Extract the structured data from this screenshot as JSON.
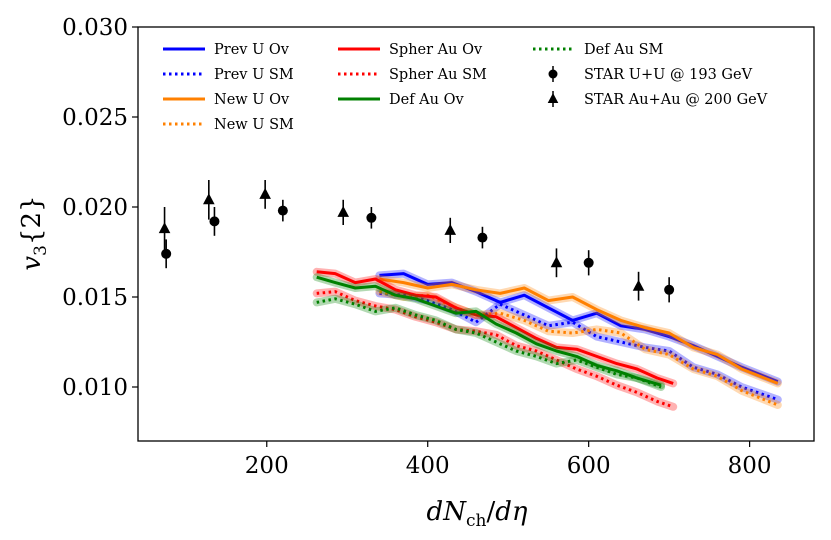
{
  "chart_data": {
    "type": "line",
    "title": "",
    "xlabel": "dN_ch/dη",
    "ylabel": "v3{2}",
    "xlabel_parts": {
      "d1": "d",
      "N": "N",
      "sub": "ch",
      "slash": "/",
      "d2": "d",
      "eta": "η"
    },
    "ylabel_parts": {
      "v": "v",
      "sub": "3",
      "brace": "{2}"
    },
    "xlim": [
      40,
      880
    ],
    "ylim": [
      0.007,
      0.03
    ],
    "xticks": [
      200,
      400,
      600,
      800
    ],
    "xtick_labels": [
      "200",
      "400",
      "600",
      "800"
    ],
    "yticks": [
      0.01,
      0.015,
      0.02,
      0.025,
      0.03
    ],
    "ytick_labels": [
      "0.010",
      "0.015",
      "0.020",
      "0.025",
      "0.030"
    ],
    "grid": false,
    "legend_position": "top",
    "series": [
      {
        "name": "Prev U Ov",
        "style": "solid",
        "color": "#0000ff",
        "x": [
          340,
          370,
          400,
          430,
          460,
          490,
          520,
          550,
          580,
          610,
          640,
          670,
          700,
          730,
          760,
          790,
          835
        ],
        "y": [
          0.0162,
          0.0163,
          0.0157,
          0.0158,
          0.0153,
          0.0147,
          0.0151,
          0.0144,
          0.0137,
          0.0141,
          0.0134,
          0.0132,
          0.0128,
          0.0123,
          0.0117,
          0.0111,
          0.0103
        ]
      },
      {
        "name": "Prev U SM",
        "style": "dotted",
        "color": "#0000ff",
        "x": [
          340,
          370,
          400,
          430,
          460,
          490,
          520,
          550,
          580,
          610,
          640,
          670,
          700,
          730,
          760,
          790,
          835
        ],
        "y": [
          0.0152,
          0.0151,
          0.0148,
          0.0143,
          0.0136,
          0.0146,
          0.014,
          0.0134,
          0.0136,
          0.0128,
          0.0125,
          0.0122,
          0.012,
          0.0111,
          0.0107,
          0.01,
          0.0093
        ]
      },
      {
        "name": "New U Ov",
        "style": "solid",
        "color": "#ff8000",
        "x": [
          340,
          370,
          400,
          430,
          460,
          490,
          520,
          550,
          580,
          610,
          640,
          670,
          700,
          730,
          760,
          790,
          835
        ],
        "y": [
          0.016,
          0.0158,
          0.0155,
          0.0157,
          0.0154,
          0.0152,
          0.0155,
          0.0148,
          0.015,
          0.0143,
          0.0137,
          0.0133,
          0.013,
          0.0122,
          0.0118,
          0.011,
          0.0102
        ]
      },
      {
        "name": "New U SM",
        "style": "dotted",
        "color": "#ff8000",
        "x": [
          340,
          370,
          400,
          430,
          460,
          490,
          520,
          550,
          580,
          610,
          640,
          670,
          700,
          730,
          760,
          790,
          835
        ],
        "y": [
          0.0153,
          0.015,
          0.0151,
          0.0145,
          0.014,
          0.0141,
          0.0137,
          0.0131,
          0.013,
          0.0132,
          0.013,
          0.0121,
          0.0118,
          0.011,
          0.0106,
          0.0098,
          0.009
        ]
      },
      {
        "name": "Spher Au Ov",
        "style": "solid",
        "color": "#ff0000",
        "x": [
          262,
          285,
          310,
          335,
          360,
          385,
          410,
          435,
          460,
          485,
          510,
          535,
          560,
          585,
          610,
          635,
          660,
          685,
          705
        ],
        "y": [
          0.0164,
          0.0163,
          0.0158,
          0.016,
          0.0154,
          0.0151,
          0.015,
          0.0144,
          0.014,
          0.0139,
          0.0133,
          0.0127,
          0.0122,
          0.0121,
          0.0117,
          0.0113,
          0.011,
          0.0105,
          0.0102
        ]
      },
      {
        "name": "Spher Au SM",
        "style": "dotted",
        "color": "#ff0000",
        "x": [
          262,
          285,
          310,
          335,
          360,
          385,
          410,
          435,
          460,
          485,
          510,
          535,
          560,
          585,
          610,
          635,
          660,
          685,
          705
        ],
        "y": [
          0.0152,
          0.0153,
          0.0148,
          0.0145,
          0.0143,
          0.0139,
          0.0136,
          0.0132,
          0.0131,
          0.0129,
          0.0123,
          0.012,
          0.0115,
          0.011,
          0.0106,
          0.0101,
          0.0097,
          0.0092,
          0.0089
        ]
      },
      {
        "name": "Def Au Ov",
        "style": "solid",
        "color": "#008000",
        "x": [
          262,
          285,
          310,
          335,
          360,
          385,
          410,
          435,
          460,
          485,
          510,
          535,
          560,
          585,
          610,
          635,
          660,
          690
        ],
        "y": [
          0.0161,
          0.0158,
          0.0155,
          0.0156,
          0.0151,
          0.0149,
          0.0145,
          0.0141,
          0.0142,
          0.0135,
          0.013,
          0.0124,
          0.012,
          0.0117,
          0.0112,
          0.0109,
          0.0105,
          0.0101
        ]
      },
      {
        "name": "Def Au SM",
        "style": "dotted",
        "color": "#008000",
        "x": [
          262,
          285,
          310,
          335,
          360,
          385,
          410,
          435,
          460,
          485,
          510,
          535,
          560,
          585,
          610,
          635,
          660,
          690
        ],
        "y": [
          0.0147,
          0.0149,
          0.0146,
          0.0142,
          0.0144,
          0.014,
          0.0137,
          0.0132,
          0.013,
          0.0125,
          0.012,
          0.0117,
          0.0113,
          0.0115,
          0.0111,
          0.0107,
          0.0105,
          0.01
        ]
      }
    ],
    "points": [
      {
        "name": "STAR U+U @ 193 GeV",
        "marker": "circle",
        "color": "#000000",
        "x": [
          75,
          135,
          220,
          330,
          468,
          600,
          700
        ],
        "y": [
          0.0174,
          0.0192,
          0.0198,
          0.0194,
          0.0183,
          0.0169,
          0.0154
        ],
        "err": [
          0.0008,
          0.0008,
          0.0006,
          0.0006,
          0.0006,
          0.0007,
          0.0007
        ]
      },
      {
        "name": "STAR Au+Au @ 200 GeV",
        "marker": "triangle",
        "color": "#000000",
        "x": [
          73,
          128,
          198,
          295,
          428,
          560,
          662
        ],
        "y": [
          0.0188,
          0.0204,
          0.0207,
          0.0197,
          0.0187,
          0.0169,
          0.0156
        ],
        "err": [
          0.0012,
          0.0011,
          0.0008,
          0.0007,
          0.0007,
          0.0008,
          0.0008
        ]
      }
    ]
  }
}
